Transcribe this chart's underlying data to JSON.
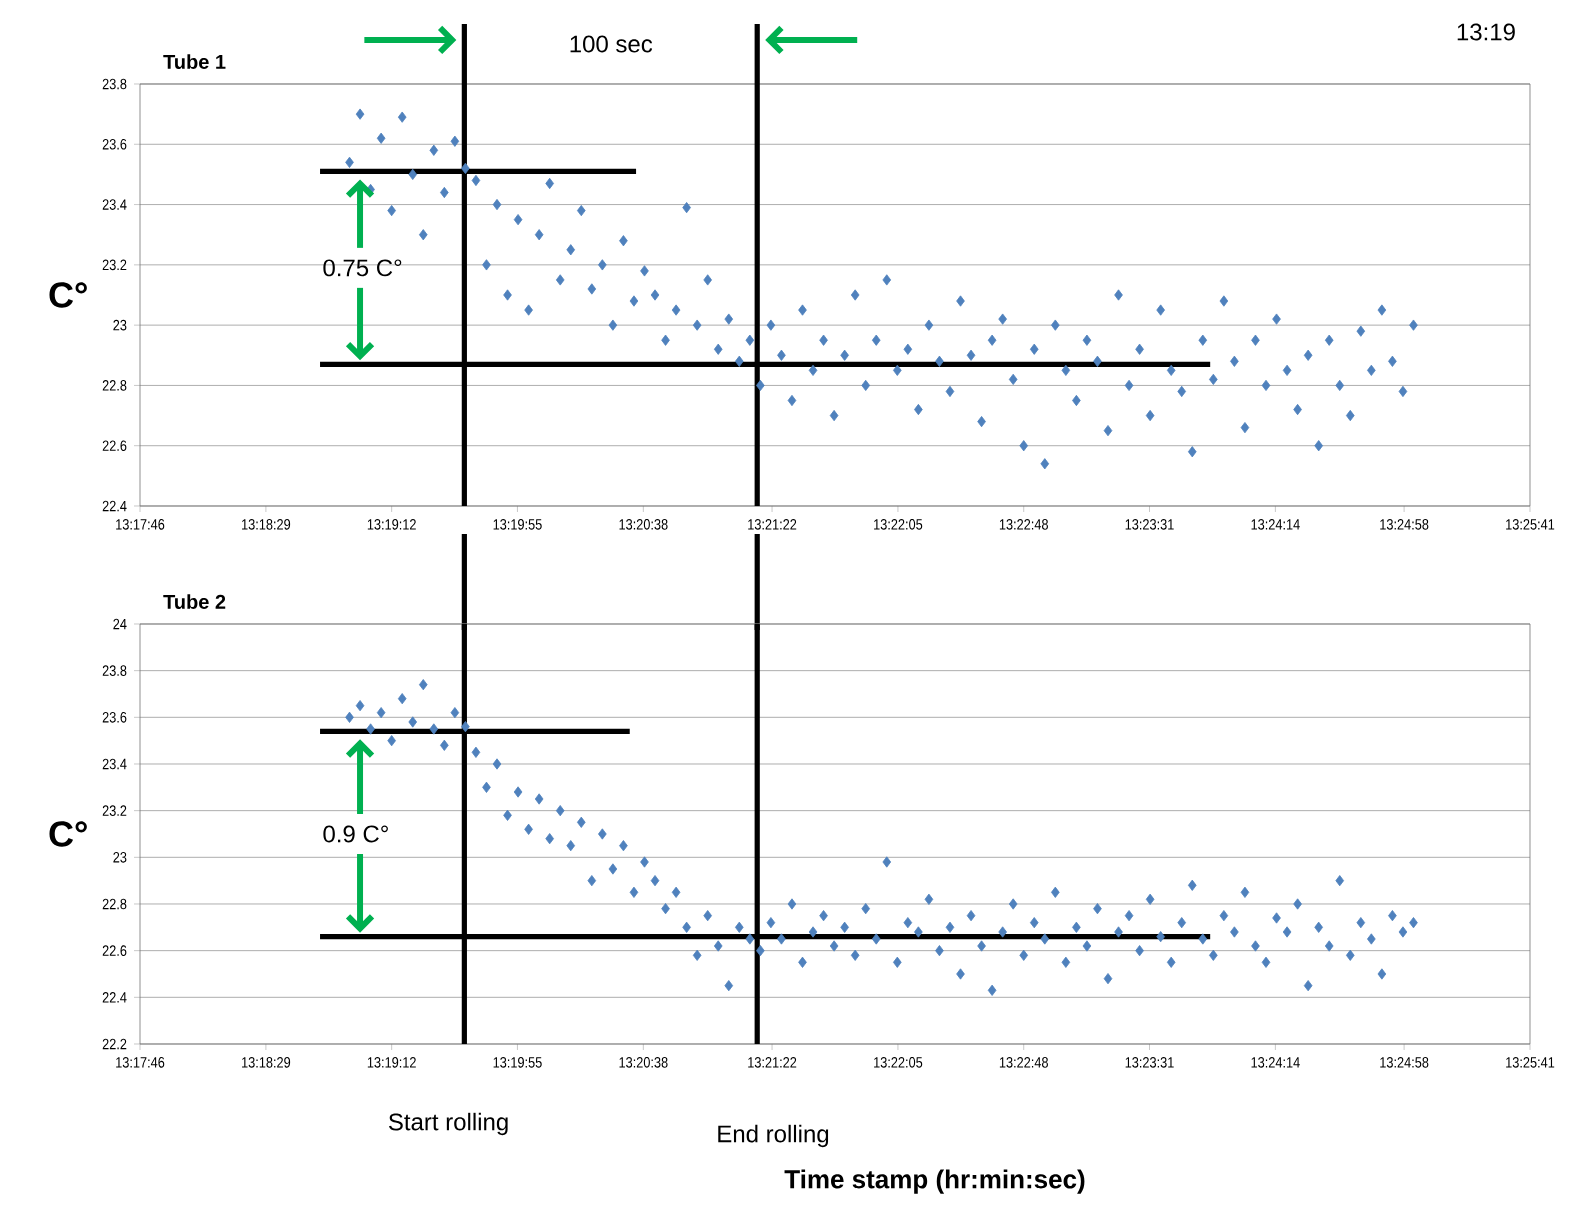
{
  "chart_data": [
    {
      "type": "scatter",
      "title": "Tube 1",
      "ylabel": "C°",
      "marker": "diamond",
      "grid": "y",
      "xlim": [
        13.29611,
        13.42806
      ],
      "ylim": [
        22.4,
        23.8
      ],
      "xticks": [
        {
          "value": 13.29611,
          "label": "13:17:46"
        },
        {
          "value": 13.30806,
          "label": "13:18:29"
        },
        {
          "value": 13.32,
          "label": "13:19:12"
        },
        {
          "value": 13.33194,
          "label": "13:19:55"
        },
        {
          "value": 13.34389,
          "label": "13:20:38"
        },
        {
          "value": 13.35611,
          "label": "13:21:22"
        },
        {
          "value": 13.36806,
          "label": "13:22:05"
        },
        {
          "value": 13.38,
          "label": "13:22:48"
        },
        {
          "value": 13.39194,
          "label": "13:23:31"
        },
        {
          "value": 13.40389,
          "label": "13:24:14"
        },
        {
          "value": 13.41611,
          "label": "13:24:58"
        },
        {
          "value": 13.42806,
          "label": "13:25:41"
        }
      ],
      "yticks": [
        22.4,
        22.6,
        22.8,
        23,
        23.2,
        23.4,
        23.6,
        23.8
      ],
      "ref_lines": [
        {
          "axis": "x",
          "value": 13.3269,
          "color": "#000000"
        },
        {
          "axis": "x",
          "value": 13.3547,
          "color": "#000000"
        }
      ],
      "annotations": [
        "100 sec",
        "13:19",
        "0.75 C°"
      ],
      "series": [
        {
          "color": "#4f81bd",
          "x": [
            13.316,
            13.317,
            13.318,
            13.319,
            13.32,
            13.321,
            13.322,
            13.323,
            13.324,
            13.325,
            13.326,
            13.327,
            13.328,
            13.329,
            13.33,
            13.331,
            13.332,
            13.333,
            13.334,
            13.335,
            13.336,
            13.337,
            13.338,
            13.339,
            13.34,
            13.341,
            13.342,
            13.343,
            13.344,
            13.345,
            13.346,
            13.347,
            13.348,
            13.349,
            13.35,
            13.351,
            13.352,
            13.353,
            13.354,
            13.355,
            13.356,
            13.357,
            13.358,
            13.359,
            13.36,
            13.361,
            13.362,
            13.363,
            13.364,
            13.365,
            13.366,
            13.367,
            13.368,
            13.369,
            13.37,
            13.371,
            13.372,
            13.373,
            13.374,
            13.375,
            13.376,
            13.377,
            13.378,
            13.379,
            13.38,
            13.381,
            13.382,
            13.383,
            13.384,
            13.385,
            13.386,
            13.387,
            13.388,
            13.389,
            13.39,
            13.391,
            13.392,
            13.393,
            13.394,
            13.395,
            13.396,
            13.397,
            13.398,
            13.399,
            13.4,
            13.401,
            13.402,
            13.403,
            13.404,
            13.405,
            13.406,
            13.407,
            13.408,
            13.409,
            13.41,
            13.411,
            13.412,
            13.413,
            13.414,
            13.415,
            13.416,
            13.417
          ],
          "values": [
            23.54,
            23.7,
            23.45,
            23.62,
            23.38,
            23.69,
            23.5,
            23.3,
            23.58,
            23.44,
            23.61,
            23.52,
            23.48,
            23.2,
            23.4,
            23.1,
            23.35,
            23.05,
            23.3,
            23.47,
            23.15,
            23.25,
            23.38,
            23.12,
            23.2,
            23.0,
            23.28,
            23.08,
            23.18,
            23.1,
            22.95,
            23.05,
            23.39,
            23.0,
            23.15,
            22.92,
            23.02,
            22.88,
            22.95,
            22.8,
            23.0,
            22.9,
            22.75,
            23.05,
            22.85,
            22.95,
            22.7,
            22.9,
            23.1,
            22.8,
            22.95,
            23.15,
            22.85,
            22.92,
            22.72,
            23.0,
            22.88,
            22.78,
            23.08,
            22.9,
            22.68,
            22.95,
            23.02,
            22.82,
            22.6,
            22.92,
            22.54,
            23.0,
            22.85,
            22.75,
            22.95,
            22.88,
            22.65,
            23.1,
            22.8,
            22.92,
            22.7,
            23.05,
            22.85,
            22.78,
            22.58,
            22.95,
            22.82,
            23.08,
            22.88,
            22.66,
            22.95,
            22.8,
            23.02,
            22.85,
            22.72,
            22.9,
            22.6,
            22.95,
            22.8,
            22.7,
            22.98,
            22.85,
            23.05,
            22.88,
            22.78,
            23.0
          ]
        },
        {
          "type": "line",
          "color": "#000000",
          "marker": "none",
          "x": [
            13.3132,
            13.3432
          ],
          "values": [
            23.51,
            23.51
          ]
        },
        {
          "type": "line",
          "color": "#000000",
          "marker": "none",
          "x": [
            13.3132,
            13.3977
          ],
          "values": [
            22.87,
            22.87
          ]
        }
      ]
    },
    {
      "type": "scatter",
      "title": "Tube 2",
      "ylabel": "C°",
      "xlabel": "Time stamp (hr:min:sec)",
      "marker": "diamond",
      "grid": "y",
      "xlim": [
        13.29611,
        13.42806
      ],
      "ylim": [
        22.2,
        24
      ],
      "xticks": [
        {
          "value": 13.29611,
          "label": "13:17:46"
        },
        {
          "value": 13.30806,
          "label": "13:18:29"
        },
        {
          "value": 13.32,
          "label": "13:19:12"
        },
        {
          "value": 13.33194,
          "label": "13:19:55"
        },
        {
          "value": 13.34389,
          "label": "13:20:38"
        },
        {
          "value": 13.35611,
          "label": "13:21:22"
        },
        {
          "value": 13.36806,
          "label": "13:22:05"
        },
        {
          "value": 13.38,
          "label": "13:22:48"
        },
        {
          "value": 13.39194,
          "label": "13:23:31"
        },
        {
          "value": 13.40389,
          "label": "13:24:14"
        },
        {
          "value": 13.41611,
          "label": "13:24:58"
        },
        {
          "value": 13.42806,
          "label": "13:25:41"
        }
      ],
      "yticks": [
        22.2,
        22.4,
        22.6,
        22.8,
        23,
        23.2,
        23.4,
        23.6,
        23.8,
        24
      ],
      "ref_lines": [
        {
          "axis": "x",
          "value": 13.3269,
          "color": "#000000"
        },
        {
          "axis": "x",
          "value": 13.3547,
          "color": "#000000"
        }
      ],
      "annotations": [
        "0.9 C°",
        "Start rolling",
        "End rolling"
      ],
      "series": [
        {
          "color": "#4f81bd",
          "x": [
            13.316,
            13.317,
            13.318,
            13.319,
            13.32,
            13.321,
            13.322,
            13.323,
            13.324,
            13.325,
            13.326,
            13.327,
            13.328,
            13.329,
            13.33,
            13.331,
            13.332,
            13.333,
            13.334,
            13.335,
            13.336,
            13.337,
            13.338,
            13.339,
            13.34,
            13.341,
            13.342,
            13.343,
            13.344,
            13.345,
            13.346,
            13.347,
            13.348,
            13.349,
            13.35,
            13.351,
            13.352,
            13.353,
            13.354,
            13.355,
            13.356,
            13.357,
            13.358,
            13.359,
            13.36,
            13.361,
            13.362,
            13.363,
            13.364,
            13.365,
            13.366,
            13.367,
            13.368,
            13.369,
            13.37,
            13.371,
            13.372,
            13.373,
            13.374,
            13.375,
            13.376,
            13.377,
            13.378,
            13.379,
            13.38,
            13.381,
            13.382,
            13.383,
            13.384,
            13.385,
            13.386,
            13.387,
            13.388,
            13.389,
            13.39,
            13.391,
            13.392,
            13.393,
            13.394,
            13.395,
            13.396,
            13.397,
            13.398,
            13.399,
            13.4,
            13.401,
            13.402,
            13.403,
            13.404,
            13.405,
            13.406,
            13.407,
            13.408,
            13.409,
            13.41,
            13.411,
            13.412,
            13.413,
            13.414,
            13.415,
            13.416,
            13.417
          ],
          "values": [
            23.6,
            23.65,
            23.55,
            23.62,
            23.5,
            23.68,
            23.58,
            23.74,
            23.55,
            23.48,
            23.62,
            23.56,
            23.45,
            23.3,
            23.4,
            23.18,
            23.28,
            23.12,
            23.25,
            23.08,
            23.2,
            23.05,
            23.15,
            22.9,
            23.1,
            22.95,
            23.05,
            22.85,
            22.98,
            22.9,
            22.78,
            22.85,
            22.7,
            22.58,
            22.75,
            22.62,
            22.45,
            22.7,
            22.65,
            22.6,
            22.72,
            22.65,
            22.8,
            22.55,
            22.68,
            22.75,
            22.62,
            22.7,
            22.58,
            22.78,
            22.65,
            22.98,
            22.55,
            22.72,
            22.68,
            22.82,
            22.6,
            22.7,
            22.5,
            22.75,
            22.62,
            22.43,
            22.68,
            22.8,
            22.58,
            22.72,
            22.65,
            22.85,
            22.55,
            22.7,
            22.62,
            22.78,
            22.48,
            22.68,
            22.75,
            22.6,
            22.82,
            22.66,
            22.55,
            22.72,
            22.88,
            22.65,
            22.58,
            22.75,
            22.68,
            22.85,
            22.62,
            22.55,
            22.74,
            22.68,
            22.8,
            22.45,
            22.7,
            22.62,
            22.9,
            22.58,
            22.72,
            22.65,
            22.5,
            22.75,
            22.68,
            22.72
          ]
        },
        {
          "type": "line",
          "color": "#000000",
          "marker": "none",
          "x": [
            13.3132,
            13.3426
          ],
          "values": [
            23.54,
            23.54
          ]
        },
        {
          "type": "line",
          "color": "#000000",
          "marker": "none",
          "x": [
            13.3132,
            13.3977
          ],
          "values": [
            22.66,
            22.66
          ]
        }
      ]
    }
  ]
}
